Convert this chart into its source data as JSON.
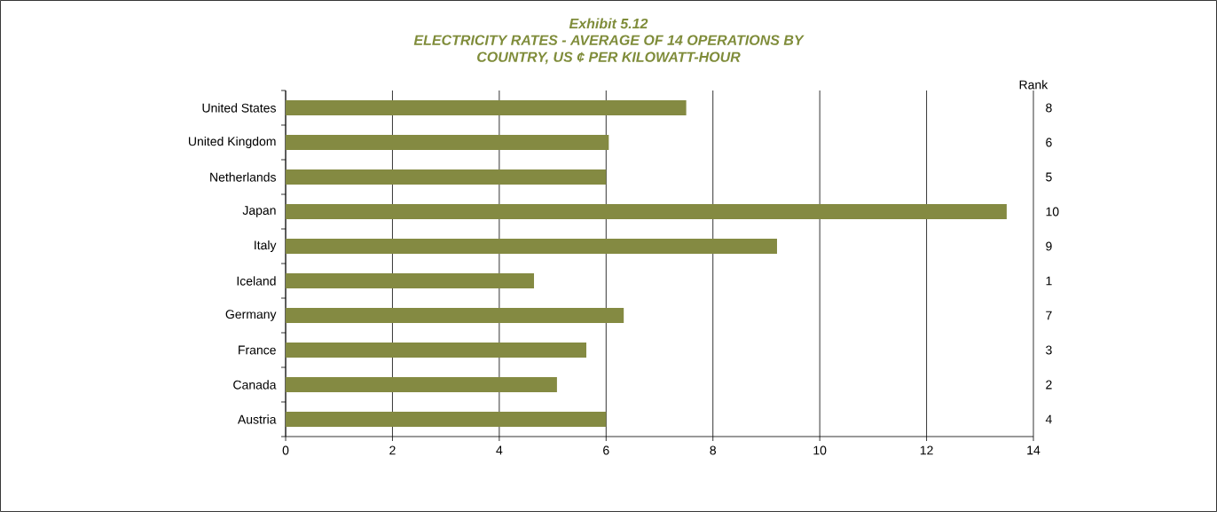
{
  "chart_data": {
    "type": "bar",
    "orientation": "horizontal",
    "title": "Exhibit 5.12",
    "subtitle": "ELECTRICITY RATES - AVERAGE OF 14 OPERATIONS BY COUNTRY, US ¢ PER KILOWATT-HOUR",
    "categories": [
      "United States",
      "United Kingdom",
      "Netherlands",
      "Japan",
      "Italy",
      "Iceland",
      "Germany",
      "France",
      "Canada",
      "Austria"
    ],
    "values": [
      7.5,
      6.05,
      6.0,
      13.5,
      9.2,
      4.65,
      6.33,
      5.63,
      5.08,
      6.0
    ],
    "color": "#848a42",
    "xlim": [
      0,
      14
    ],
    "xticks": [
      0,
      2,
      4,
      6,
      8,
      10,
      12,
      14
    ],
    "grid": "x",
    "annotations": [
      "Rank",
      "8",
      "6",
      "5",
      "10",
      "9",
      "1",
      "7",
      "3",
      "2",
      "4"
    ]
  }
}
